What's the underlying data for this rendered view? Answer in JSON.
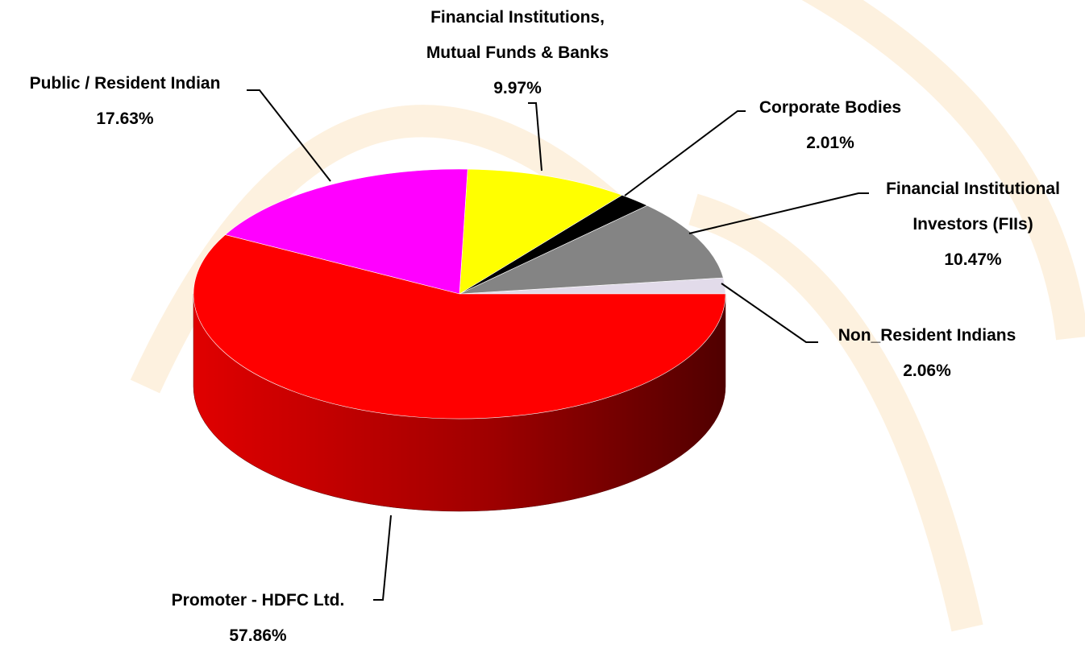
{
  "chart_data": {
    "type": "pie3d",
    "categories": [
      "Non_Resident Indians",
      "Financial Institutional Investors (FIIs)",
      "Corporate Bodies",
      "Financial Institutions, Mutual Funds & Banks",
      "Public / Resident Indian",
      "Promoter - HDFC Ltd."
    ],
    "values": [
      2.06,
      10.47,
      2.01,
      9.97,
      17.63,
      57.86
    ],
    "value_labels": [
      "2.06%",
      "10.47%",
      "2.01%",
      "9.97%",
      "17.63%",
      "57.86%"
    ],
    "colors": [
      "#e2dbea",
      "#848484",
      "#000000",
      "#ffff00",
      "#ff00ff",
      "#ff0000"
    ]
  }
}
